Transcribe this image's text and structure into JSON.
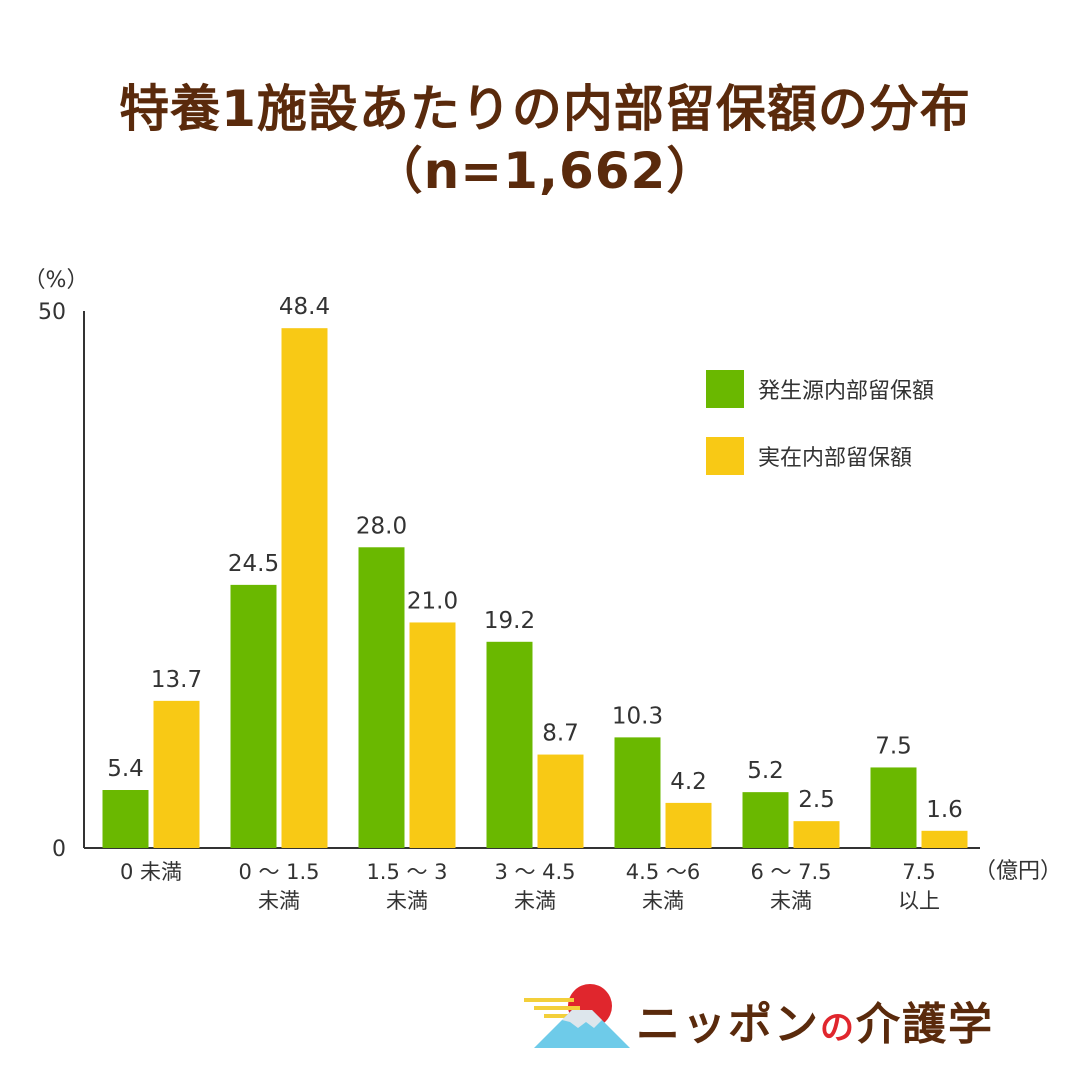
{
  "title": {
    "line1": "特養1施設あたりの内部留保額の分布",
    "line2": "（n=1,662）"
  },
  "chart_data": {
    "type": "bar",
    "y_unit_label": "（%）",
    "x_unit_label": "（億円）",
    "ylim": [
      0,
      50
    ],
    "y_ticks": [
      "0",
      "50"
    ],
    "categories": [
      [
        "0 未満"
      ],
      [
        "0 ～ 1.5",
        "未満"
      ],
      [
        "1.5 ～ 3",
        "未満"
      ],
      [
        "3 ～ 4.5",
        "未満"
      ],
      [
        "4.5 ～6",
        "未満"
      ],
      [
        "6 ～ 7.5",
        "未満"
      ],
      [
        "7.5",
        "以上"
      ]
    ],
    "series": [
      {
        "name": "発生源内部留保額",
        "color": "#6ab800",
        "values": [
          5.4,
          24.5,
          28.0,
          19.2,
          10.3,
          5.2,
          7.5
        ],
        "labels": [
          "5.4",
          "24.5",
          "28.0",
          "19.2",
          "10.3",
          "5.2",
          "7.5"
        ]
      },
      {
        "name": "実在内部留保額",
        "color": "#f8c915",
        "values": [
          13.7,
          48.4,
          21.0,
          8.7,
          4.2,
          2.5,
          1.6
        ],
        "labels": [
          "13.7",
          "48.4",
          "21.0",
          "8.7",
          "4.2",
          "2.5",
          "1.6"
        ]
      }
    ],
    "legend_position": "top-right",
    "grid": false
  },
  "logo": {
    "text_a": "ニッポン",
    "text_b": "の",
    "text_c": "介護学",
    "icon": "mount-fuji-sun-icon"
  }
}
